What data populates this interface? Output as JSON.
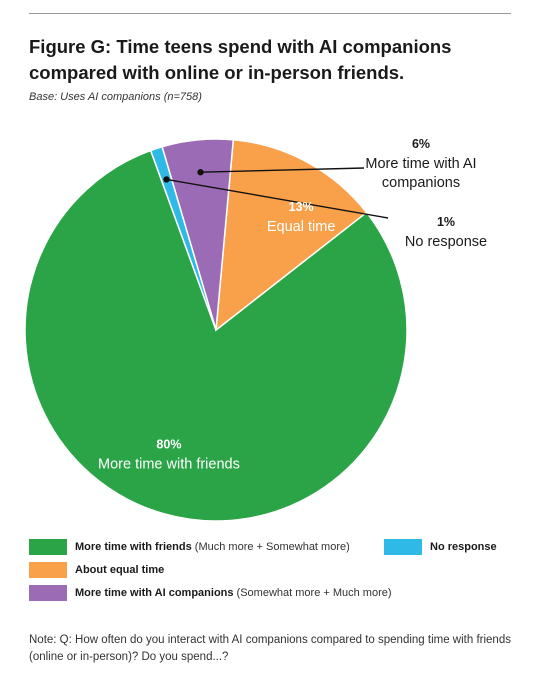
{
  "header": {
    "title": "Figure G: Time teens spend with AI companions compared with online or in-person friends.",
    "subtitle": "Base: Uses AI companions (n=758)"
  },
  "chart_data": {
    "type": "pie",
    "slices": [
      {
        "pct_label": "80%",
        "label": "More time with friends",
        "value": 80,
        "color": "#2aa447"
      },
      {
        "pct_label": "13%",
        "label": "Equal time",
        "value": 13,
        "color": "#f9a04b"
      },
      {
        "pct_label": "6%",
        "label": "More time with AI companions",
        "value": 6,
        "color": "#9b6cb5"
      },
      {
        "pct_label": "1%",
        "label": "No response",
        "value": 1,
        "color": "#2fb9e6"
      }
    ],
    "start_angle_deg": -20,
    "direction": "counterclockwise"
  },
  "legend": {
    "items": [
      {
        "bold": "More time with friends",
        "detail": " (Much more + Somewhat more)",
        "color": "#2aa447"
      },
      {
        "bold": "About equal time",
        "detail": "",
        "color": "#f9a04b"
      },
      {
        "bold": "More time with AI companions",
        "detail": " (Somewhat more + Much more)",
        "color": "#9b6cb5"
      },
      {
        "bold": "No response",
        "detail": "",
        "color": "#2fb9e6"
      }
    ]
  },
  "note": "Note: Q: How often do you interact with AI companions compared to spending time with friends (online or in-person)? Do you spend...?"
}
